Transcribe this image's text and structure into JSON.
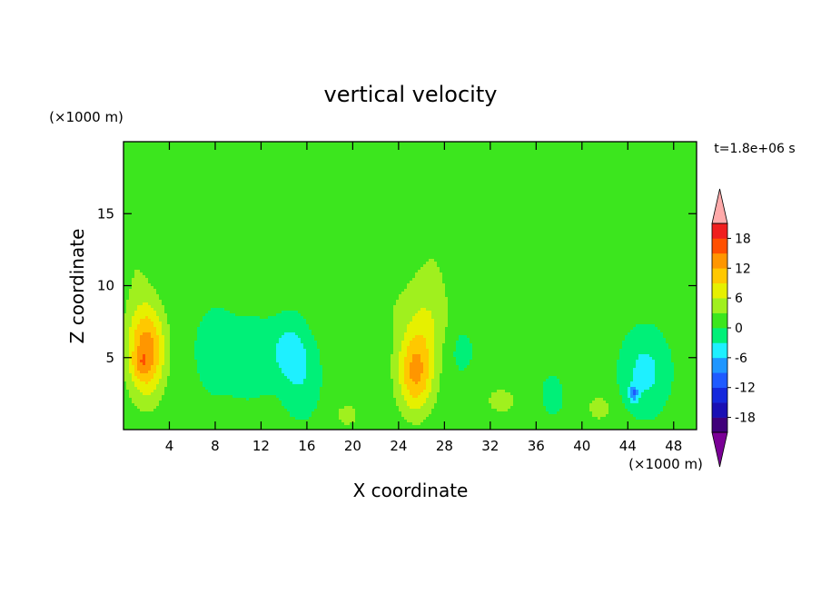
{
  "chart_data": {
    "type": "heatmap",
    "title": "vertical velocity",
    "xlabel": "X coordinate",
    "ylabel": "Z coordinate",
    "x_unit": "(×1000 m)",
    "y_unit": "(×1000 m)",
    "time_label": "t=1.8e+06 s",
    "xlim": [
      0,
      50
    ],
    "ylim": [
      0,
      20
    ],
    "x_ticks": [
      4,
      8,
      12,
      16,
      20,
      24,
      28,
      32,
      36,
      40,
      44,
      48
    ],
    "y_ticks": [
      5,
      10,
      15
    ],
    "colorbar": {
      "levels": [
        -21,
        -18,
        -15,
        -12,
        -9,
        -6,
        -3,
        0,
        3,
        6,
        9,
        12,
        15,
        18,
        21
      ],
      "labels": [
        18,
        12,
        6,
        0,
        -6,
        -12,
        -18
      ],
      "colors": [
        "#7a0096",
        "#40007a",
        "#1a0fb4",
        "#1428dc",
        "#1e5aff",
        "#1e96ff",
        "#1ef0ff",
        "#00f078",
        "#3ce61e",
        "#a0f01e",
        "#e6f000",
        "#ffc800",
        "#ff9600",
        "#ff5000",
        "#f01e1e",
        "#ffaaaa"
      ],
      "extend": "both"
    },
    "features": [
      {
        "x": 2.0,
        "z": 5.5,
        "sx": 1.6,
        "sz": 3.2,
        "v": 13
      },
      {
        "x": 1.5,
        "z": 4.5,
        "sx": 0.7,
        "sz": 0.9,
        "v": 3
      },
      {
        "x": 25.5,
        "z": 4.0,
        "sx": 1.6,
        "sz": 2.8,
        "v": 12
      },
      {
        "x": 26.5,
        "z": 7.5,
        "sx": 1.8,
        "sz": 2.5,
        "v": 4
      },
      {
        "x": 14.5,
        "z": 5.5,
        "sx": 1.5,
        "sz": 2.0,
        "v": -5
      },
      {
        "x": 11.0,
        "z": 5.0,
        "sx": 2.2,
        "sz": 2.5,
        "v": -3
      },
      {
        "x": 8.0,
        "z": 5.5,
        "sx": 1.5,
        "sz": 2.5,
        "v": -3
      },
      {
        "x": 15.5,
        "z": 3.5,
        "sx": 1.5,
        "sz": 2.5,
        "v": -3
      },
      {
        "x": 45.5,
        "z": 4.0,
        "sx": 1.8,
        "sz": 2.5,
        "v": -5
      },
      {
        "x": 44.5,
        "z": 2.5,
        "sx": 0.4,
        "sz": 0.6,
        "v": -8
      },
      {
        "x": 33.0,
        "z": 2.0,
        "sx": 1.2,
        "sz": 0.8,
        "v": 5
      },
      {
        "x": 41.5,
        "z": 1.5,
        "sx": 0.9,
        "sz": 0.8,
        "v": 5
      },
      {
        "x": 19.5,
        "z": 1.0,
        "sx": 1.0,
        "sz": 0.8,
        "v": 4
      },
      {
        "x": 5.0,
        "z": 16.0,
        "sx": 2.5,
        "sz": 3.5,
        "v": 2
      },
      {
        "x": 1.0,
        "z": 13.0,
        "sx": 1.5,
        "sz": 5.0,
        "v": 2
      },
      {
        "x": 27.0,
        "z": 12.0,
        "sx": 3.5,
        "sz": 4.0,
        "v": 2
      },
      {
        "x": 41.5,
        "z": 14.5,
        "sx": 2.5,
        "sz": 1.8,
        "v": 2
      },
      {
        "x": 31.0,
        "z": 16.3,
        "sx": 2.2,
        "sz": 0.5,
        "v": 2
      },
      {
        "x": 49.0,
        "z": 16.0,
        "sx": 1.2,
        "sz": 3.0,
        "v": 2
      },
      {
        "x": 23.0,
        "z": 8.5,
        "sx": 2.0,
        "sz": 2.5,
        "v": 1.5
      },
      {
        "x": 17.5,
        "z": 8.0,
        "sx": 1.2,
        "sz": 1.5,
        "v": 1
      },
      {
        "x": 39.0,
        "z": 5.0,
        "sx": 1.5,
        "sz": 2.0,
        "v": 1
      },
      {
        "x": 29.5,
        "z": 5.5,
        "sx": 1.0,
        "sz": 1.5,
        "v": -2
      },
      {
        "x": 37.5,
        "z": 2.5,
        "sx": 1.0,
        "sz": 1.5,
        "v": -2
      }
    ]
  }
}
